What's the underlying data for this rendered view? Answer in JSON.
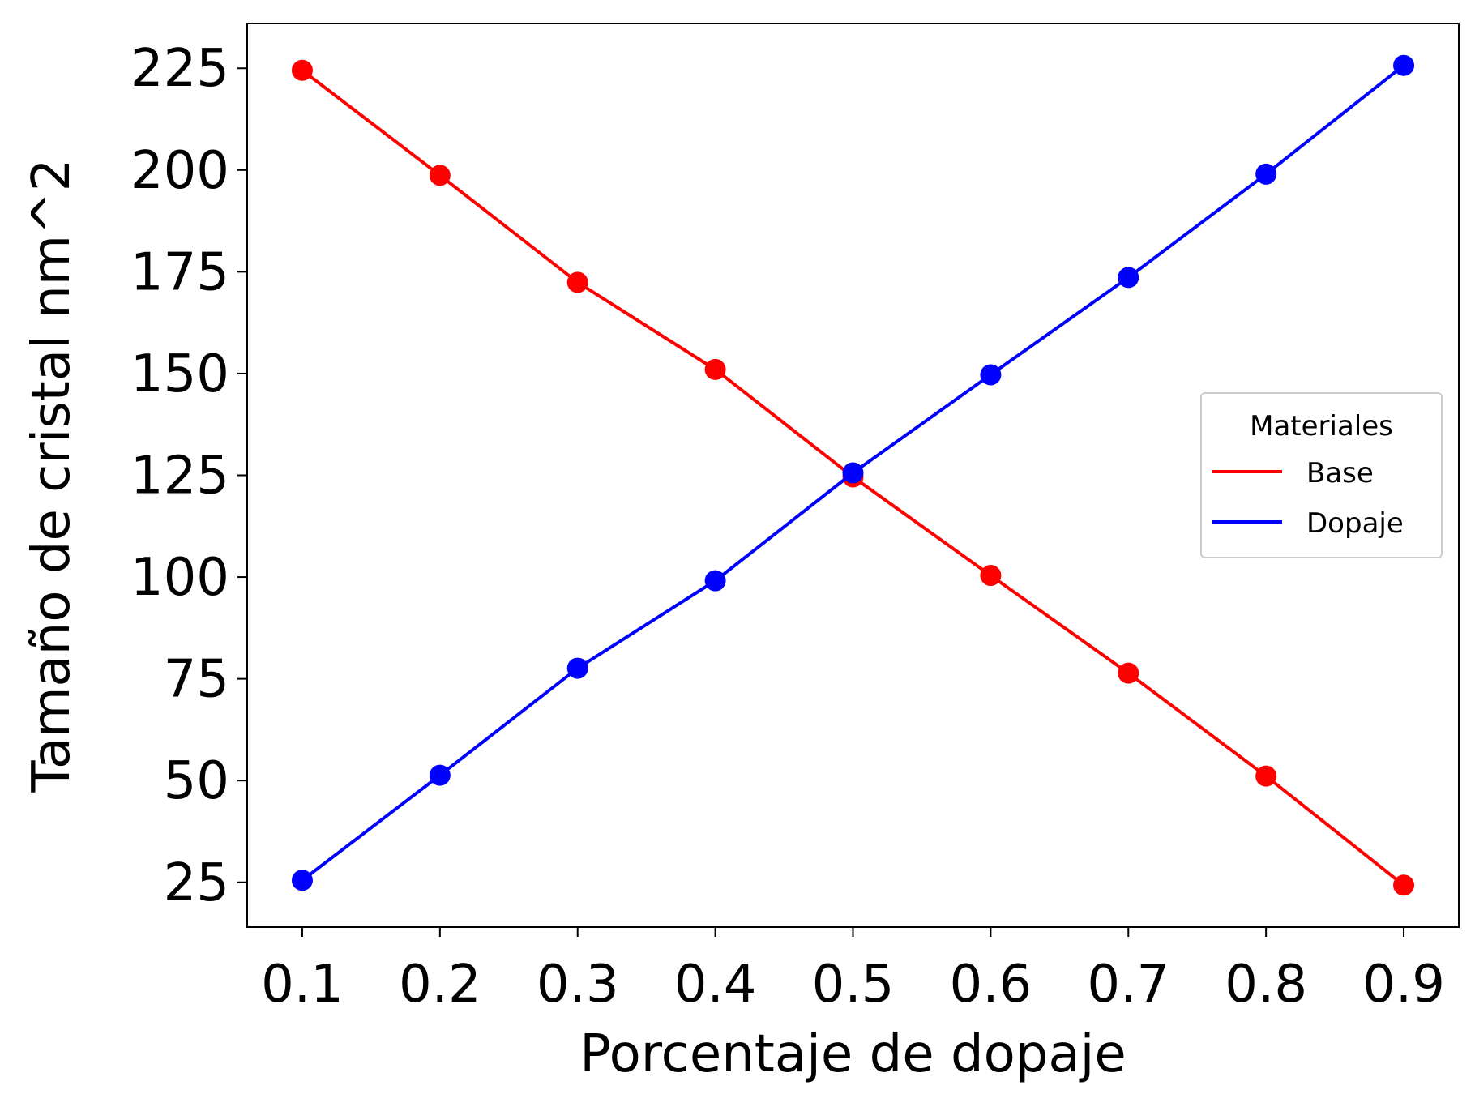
{
  "chart_data": {
    "type": "line",
    "title": "",
    "xlabel": "Porcentaje de dopaje",
    "ylabel": "Tamaño de cristal nm^2",
    "x": [
      0.1,
      0.2,
      0.3,
      0.4,
      0.5,
      0.6,
      0.7,
      0.8,
      0.9
    ],
    "x_tick_labels": [
      "0.1",
      "0.2",
      "0.3",
      "0.4",
      "0.5",
      "0.6",
      "0.7",
      "0.8",
      "0.9"
    ],
    "y_ticks": [
      25,
      50,
      75,
      100,
      125,
      150,
      175,
      200,
      225
    ],
    "y_tick_labels": [
      "25",
      "50",
      "75",
      "100",
      "125",
      "150",
      "175",
      "200",
      "225"
    ],
    "xlim": [
      0.06,
      0.94
    ],
    "ylim": [
      14,
      236
    ],
    "grid": false,
    "legend": {
      "title": "Materiales",
      "placement": "center-right"
    },
    "series": [
      {
        "name": "Base",
        "color": "#ff0000",
        "marker": "circle",
        "values": [
          224.5,
          198.7,
          172.4,
          151.0,
          124.6,
          100.4,
          76.4,
          51.1,
          24.3
        ]
      },
      {
        "name": "Dopaje",
        "color": "#0000ff",
        "marker": "circle",
        "values": [
          25.5,
          51.3,
          77.6,
          99.1,
          125.6,
          149.7,
          173.6,
          199.0,
          225.7
        ]
      }
    ]
  }
}
